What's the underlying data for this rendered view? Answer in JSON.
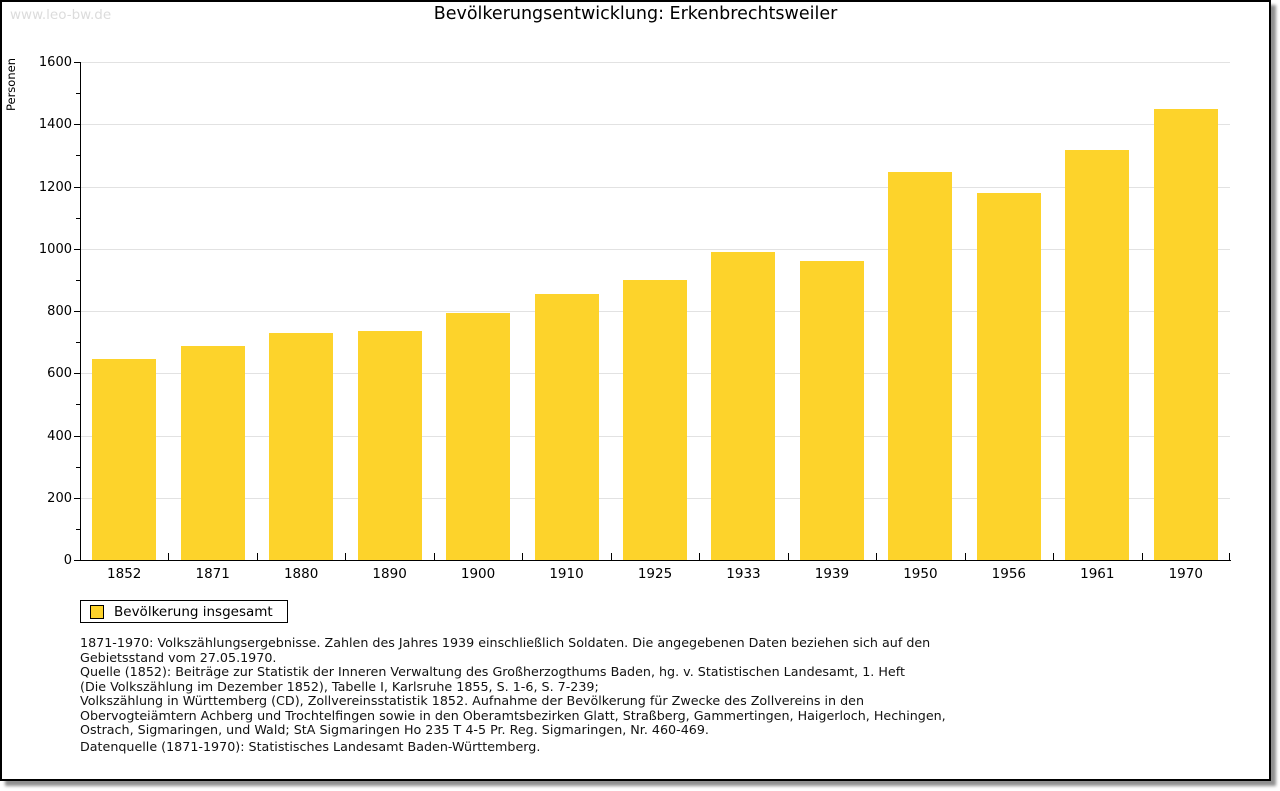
{
  "page": {
    "watermark": "www.leo-bw.de",
    "title": "Bevölkerungsentwicklung: Erkenbrechtsweiler"
  },
  "legend": {
    "label": "Bevölkerung insgesamt",
    "swatch_color": "#fdd32b"
  },
  "chart_data": {
    "type": "bar",
    "title": "Bevölkerungsentwicklung: Erkenbrechtsweiler",
    "xlabel": "",
    "ylabel": "Personen",
    "categories": [
      "1852",
      "1871",
      "1880",
      "1890",
      "1900",
      "1910",
      "1925",
      "1933",
      "1939",
      "1950",
      "1956",
      "1961",
      "1970"
    ],
    "series": [
      {
        "name": "Bevölkerung insgesamt",
        "color": "#fdd32b",
        "values": [
          645,
          688,
          728,
          737,
          792,
          855,
          900,
          990,
          960,
          1247,
          1178,
          1317,
          1450
        ]
      }
    ],
    "ylim": [
      0,
      1600
    ],
    "ytick_step": 200,
    "yminor_step": 100,
    "grid": true,
    "legend_position": "below-left"
  },
  "footnotes": {
    "lines": [
      "1871-1970: Volkszählungsergebnisse. Zahlen des Jahres 1939 einschließlich Soldaten. Die angegebenen Daten beziehen sich auf den",
      "Gebietsstand vom 27.05.1970.",
      "Quelle (1852): Beiträge zur Statistik der Inneren Verwaltung des Großherzogthums Baden, hg. v. Statistischen Landesamt, 1. Heft",
      "(Die Volkszählung im Dezember 1852), Tabelle I, Karlsruhe 1855, S. 1-6, S. 7-239;",
      "Volkszählung in Württemberg (CD), Zollvereinsstatistik 1852. Aufnahme der Bevölkerung für Zwecke des Zollvereins in den",
      "Obervogteiämtern Achberg und Trochtelfingen sowie in den Oberamtsbezirken Glatt, Straßberg, Gammertingen, Haigerloch, Hechingen,",
      "Ostrach, Sigmaringen, und Wald; StA Sigmaringen Ho 235 T 4-5 Pr. Reg. Sigmaringen, Nr. 460-469."
    ],
    "datasource": "Datenquelle (1871-1970): Statistisches Landesamt Baden-Württemberg."
  },
  "colors": {
    "bar": "#fdd32b",
    "grid": "#e2e2e2",
    "axis": "#000000",
    "watermark": "#dcdcdc",
    "frame_border": "#000000"
  }
}
